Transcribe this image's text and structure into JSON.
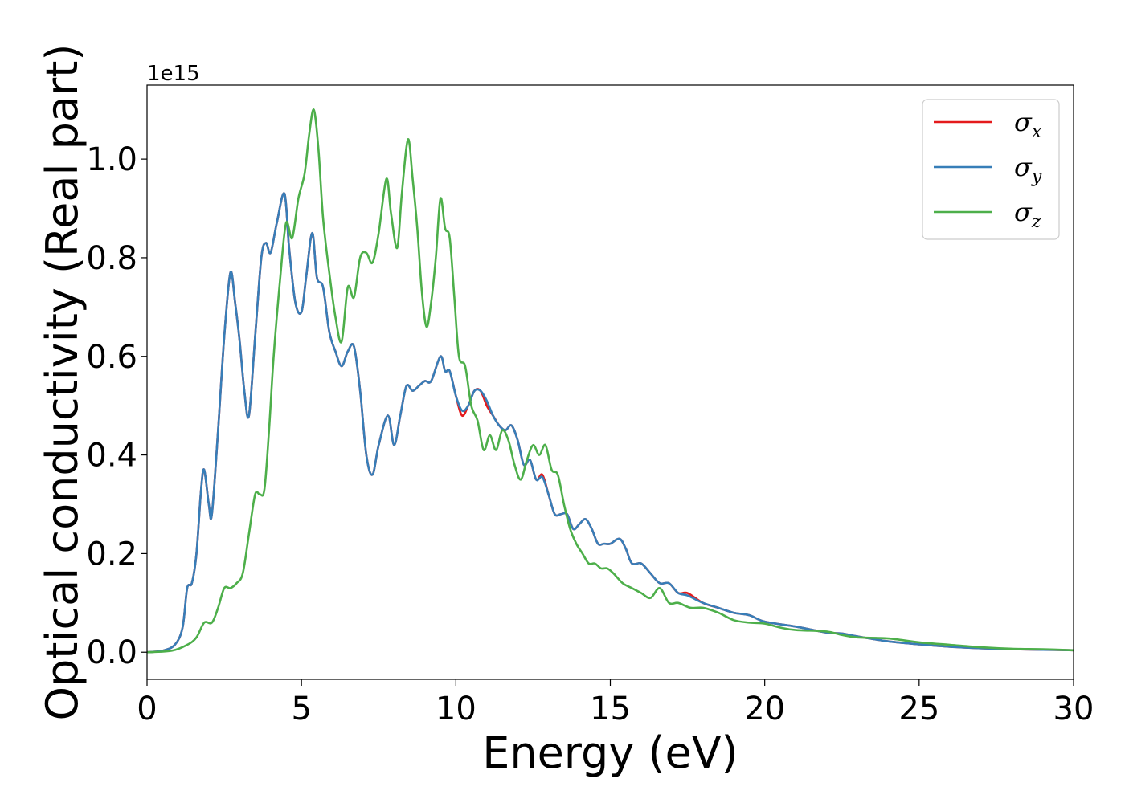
{
  "chart_data": {
    "type": "line",
    "xlabel": "Energy (eV)",
    "ylabel": "Optical conductivity (Real part)",
    "y_offset_label": "1e15",
    "xlim": [
      0,
      30
    ],
    "ylim": [
      -0.055,
      1.15
    ],
    "x_ticks": [
      0,
      5,
      10,
      15,
      20,
      25,
      30
    ],
    "y_ticks": [
      0.0,
      0.2,
      0.4,
      0.6,
      0.8,
      1.0
    ],
    "x_tick_labels": [
      "0",
      "5",
      "10",
      "15",
      "20",
      "25",
      "30"
    ],
    "y_tick_labels": [
      "0.0",
      "0.2",
      "0.4",
      "0.6",
      "0.8",
      "1.0"
    ],
    "grid": false,
    "legend_position": "top-right",
    "series": [
      {
        "name": "σx",
        "legend_symbol": "σ",
        "legend_sub": "x",
        "color": "#e41a1c",
        "x": [
          0,
          0.5,
          0.9,
          1.15,
          1.3,
          1.45,
          1.6,
          1.75,
          1.85,
          2.0,
          2.1,
          2.3,
          2.5,
          2.7,
          2.85,
          3.0,
          3.15,
          3.3,
          3.5,
          3.7,
          3.85,
          4.0,
          4.2,
          4.45,
          4.6,
          4.8,
          5.0,
          5.15,
          5.35,
          5.5,
          5.7,
          5.9,
          6.1,
          6.3,
          6.5,
          6.7,
          6.9,
          7.1,
          7.3,
          7.5,
          7.8,
          8.0,
          8.2,
          8.4,
          8.6,
          8.8,
          9.0,
          9.2,
          9.5,
          9.65,
          9.8,
          10.0,
          10.2,
          10.4,
          10.6,
          10.8,
          11.0,
          11.2,
          11.4,
          11.6,
          11.8,
          12.0,
          12.2,
          12.4,
          12.6,
          12.8,
          13.0,
          13.2,
          13.4,
          13.6,
          13.8,
          14.0,
          14.2,
          14.4,
          14.6,
          14.8,
          15.0,
          15.3,
          15.5,
          15.7,
          16.0,
          16.3,
          16.6,
          16.9,
          17.2,
          17.5,
          18.0,
          18.5,
          19.0,
          19.5,
          20.0,
          21.0,
          22.0,
          22.5,
          23.0,
          24.0,
          25.0,
          26.0,
          27.0,
          28.0,
          29.0,
          30.0
        ],
        "values": [
          0,
          0.003,
          0.015,
          0.05,
          0.13,
          0.14,
          0.2,
          0.33,
          0.37,
          0.3,
          0.28,
          0.45,
          0.64,
          0.77,
          0.71,
          0.63,
          0.53,
          0.48,
          0.64,
          0.8,
          0.83,
          0.81,
          0.87,
          0.93,
          0.82,
          0.71,
          0.69,
          0.76,
          0.85,
          0.76,
          0.74,
          0.65,
          0.61,
          0.58,
          0.61,
          0.62,
          0.53,
          0.4,
          0.36,
          0.42,
          0.48,
          0.42,
          0.48,
          0.54,
          0.53,
          0.54,
          0.55,
          0.55,
          0.6,
          0.57,
          0.57,
          0.52,
          0.48,
          0.5,
          0.53,
          0.53,
          0.5,
          0.48,
          0.46,
          0.45,
          0.46,
          0.43,
          0.38,
          0.39,
          0.35,
          0.36,
          0.32,
          0.28,
          0.28,
          0.28,
          0.25,
          0.26,
          0.27,
          0.25,
          0.22,
          0.22,
          0.22,
          0.23,
          0.21,
          0.18,
          0.18,
          0.16,
          0.14,
          0.14,
          0.12,
          0.12,
          0.1,
          0.09,
          0.08,
          0.075,
          0.062,
          0.052,
          0.04,
          0.038,
          0.032,
          0.022,
          0.016,
          0.011,
          0.008,
          0.006,
          0.005,
          0.004
        ]
      },
      {
        "name": "σy",
        "legend_symbol": "σ",
        "legend_sub": "y",
        "color": "#377eb8",
        "x": [
          0,
          0.5,
          0.9,
          1.15,
          1.3,
          1.45,
          1.6,
          1.75,
          1.85,
          2.0,
          2.1,
          2.3,
          2.5,
          2.7,
          2.85,
          3.0,
          3.15,
          3.3,
          3.5,
          3.7,
          3.85,
          4.0,
          4.2,
          4.45,
          4.6,
          4.8,
          5.0,
          5.15,
          5.35,
          5.5,
          5.7,
          5.9,
          6.1,
          6.3,
          6.5,
          6.7,
          6.9,
          7.1,
          7.3,
          7.5,
          7.8,
          8.0,
          8.2,
          8.4,
          8.6,
          8.8,
          9.0,
          9.2,
          9.5,
          9.65,
          9.8,
          10.0,
          10.2,
          10.4,
          10.6,
          10.8,
          11.0,
          11.2,
          11.4,
          11.6,
          11.8,
          12.0,
          12.2,
          12.4,
          12.6,
          12.8,
          13.0,
          13.2,
          13.4,
          13.6,
          13.8,
          14.0,
          14.2,
          14.4,
          14.6,
          14.8,
          15.0,
          15.3,
          15.5,
          15.7,
          16.0,
          16.3,
          16.6,
          16.9,
          17.2,
          17.5,
          18.0,
          18.5,
          19.0,
          19.5,
          20.0,
          21.0,
          22.0,
          22.5,
          23.0,
          24.0,
          25.0,
          26.0,
          27.0,
          28.0,
          29.0,
          30.0
        ],
        "values": [
          0,
          0.003,
          0.015,
          0.05,
          0.13,
          0.14,
          0.2,
          0.33,
          0.37,
          0.3,
          0.28,
          0.45,
          0.64,
          0.77,
          0.71,
          0.63,
          0.53,
          0.48,
          0.64,
          0.8,
          0.83,
          0.81,
          0.87,
          0.93,
          0.82,
          0.71,
          0.69,
          0.76,
          0.85,
          0.76,
          0.74,
          0.65,
          0.61,
          0.58,
          0.61,
          0.62,
          0.53,
          0.4,
          0.36,
          0.42,
          0.48,
          0.42,
          0.48,
          0.54,
          0.53,
          0.54,
          0.55,
          0.55,
          0.6,
          0.57,
          0.57,
          0.52,
          0.49,
          0.5,
          0.53,
          0.53,
          0.51,
          0.48,
          0.46,
          0.45,
          0.46,
          0.43,
          0.38,
          0.39,
          0.35,
          0.355,
          0.32,
          0.28,
          0.28,
          0.28,
          0.25,
          0.26,
          0.27,
          0.25,
          0.22,
          0.22,
          0.22,
          0.23,
          0.21,
          0.18,
          0.18,
          0.16,
          0.14,
          0.14,
          0.12,
          0.115,
          0.1,
          0.09,
          0.08,
          0.075,
          0.062,
          0.052,
          0.04,
          0.038,
          0.032,
          0.022,
          0.016,
          0.011,
          0.008,
          0.006,
          0.005,
          0.004
        ]
      },
      {
        "name": "σz",
        "legend_symbol": "σ",
        "legend_sub": "z",
        "color": "#4daf4a",
        "x": [
          0,
          0.8,
          1.3,
          1.6,
          1.85,
          2.1,
          2.3,
          2.5,
          2.7,
          2.9,
          3.1,
          3.3,
          3.5,
          3.65,
          3.8,
          3.95,
          4.1,
          4.3,
          4.5,
          4.7,
          4.9,
          5.1,
          5.25,
          5.4,
          5.55,
          5.7,
          5.9,
          6.1,
          6.3,
          6.5,
          6.7,
          6.9,
          7.1,
          7.3,
          7.5,
          7.75,
          7.9,
          8.1,
          8.25,
          8.45,
          8.6,
          8.75,
          8.9,
          9.05,
          9.2,
          9.35,
          9.5,
          9.65,
          9.8,
          9.95,
          10.1,
          10.3,
          10.5,
          10.7,
          10.9,
          11.1,
          11.3,
          11.5,
          11.7,
          11.9,
          12.1,
          12.3,
          12.5,
          12.7,
          12.9,
          13.1,
          13.3,
          13.5,
          13.7,
          13.9,
          14.1,
          14.3,
          14.5,
          14.7,
          14.9,
          15.1,
          15.4,
          15.7,
          16.0,
          16.3,
          16.6,
          16.9,
          17.2,
          17.6,
          18.0,
          18.5,
          19.0,
          19.5,
          20.0,
          20.5,
          21.0,
          22.0,
          22.5,
          23.0,
          24.0,
          25.0,
          26.0,
          27.0,
          28.0,
          29.0,
          30.0
        ],
        "values": [
          0,
          0.003,
          0.015,
          0.03,
          0.06,
          0.06,
          0.09,
          0.13,
          0.13,
          0.14,
          0.16,
          0.24,
          0.32,
          0.32,
          0.33,
          0.45,
          0.6,
          0.75,
          0.87,
          0.84,
          0.92,
          0.97,
          1.05,
          1.1,
          1.02,
          0.88,
          0.77,
          0.68,
          0.63,
          0.74,
          0.72,
          0.8,
          0.81,
          0.79,
          0.85,
          0.96,
          0.89,
          0.82,
          0.93,
          1.04,
          0.96,
          0.86,
          0.73,
          0.66,
          0.71,
          0.8,
          0.92,
          0.86,
          0.84,
          0.72,
          0.6,
          0.58,
          0.5,
          0.47,
          0.41,
          0.44,
          0.41,
          0.45,
          0.43,
          0.38,
          0.35,
          0.39,
          0.42,
          0.4,
          0.42,
          0.37,
          0.36,
          0.3,
          0.25,
          0.22,
          0.2,
          0.18,
          0.18,
          0.17,
          0.17,
          0.16,
          0.14,
          0.13,
          0.12,
          0.11,
          0.13,
          0.1,
          0.1,
          0.09,
          0.09,
          0.08,
          0.065,
          0.06,
          0.058,
          0.05,
          0.045,
          0.042,
          0.035,
          0.03,
          0.028,
          0.02,
          0.015,
          0.01,
          0.007,
          0.006,
          0.004
        ]
      }
    ]
  }
}
